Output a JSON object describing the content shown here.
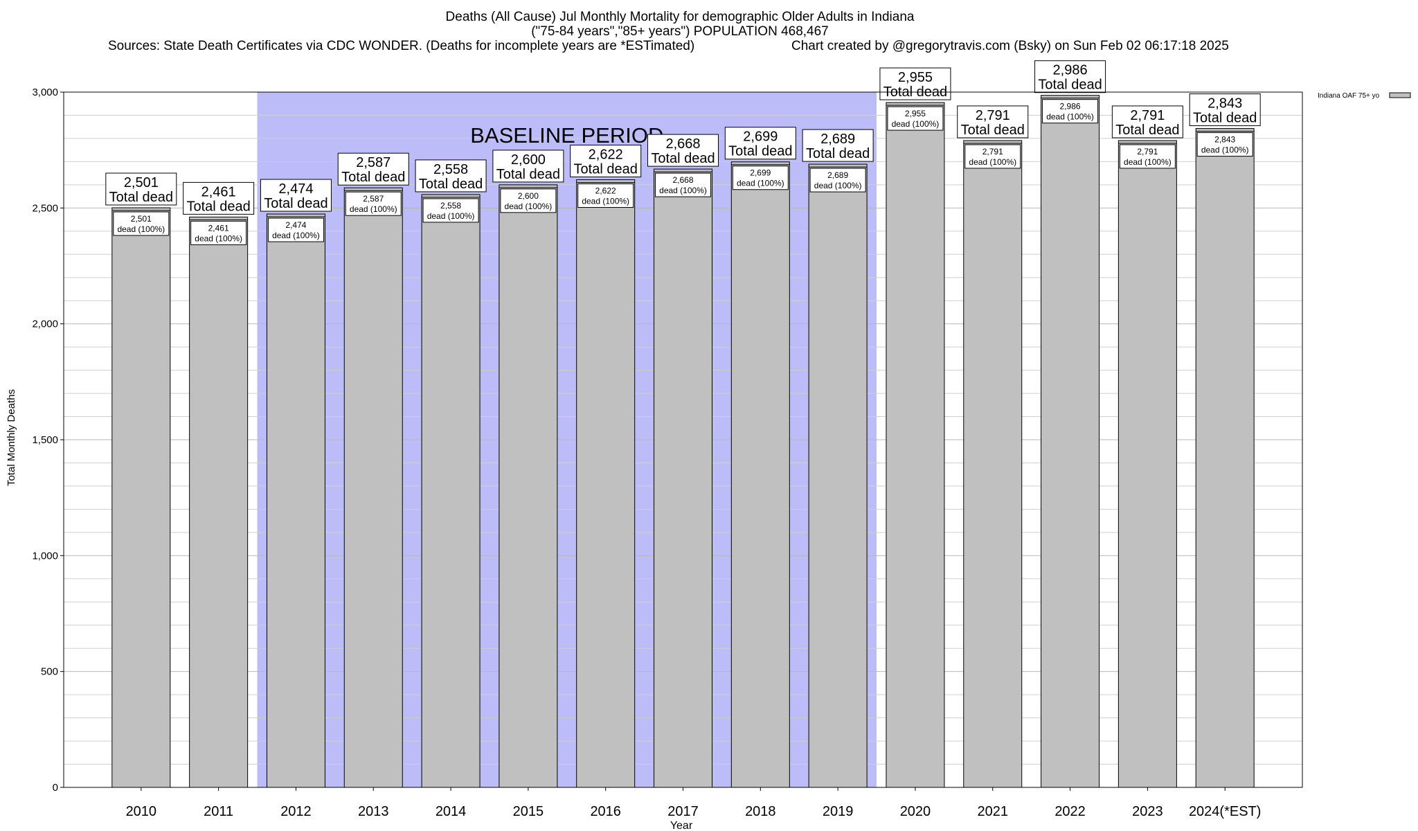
{
  "chart_data": {
    "type": "bar",
    "title": "Deaths (All Cause) Jul Monthly Mortality for demographic Older Adults in Indiana",
    "subtitle": "(\"75-84 years\",\"85+ years\") POPULATION 468,467",
    "sources": "Sources: State Death Certificates via CDC WONDER. (Deaths for incomplete years are *ESTimated)",
    "credit": "Chart created by @gregorytravis.com (Bsky) on Sun Feb 02 06:17:18 2025",
    "xlabel": "Year",
    "ylabel": "Total Monthly Deaths",
    "ylim": [
      0,
      3000
    ],
    "y_ticks": [
      0,
      500,
      1000,
      1500,
      2000,
      2500,
      3000
    ],
    "y_tick_labels": [
      "0",
      "500",
      "1,000",
      "1,500",
      "2,000",
      "2,500",
      "3,000"
    ],
    "grid": true,
    "categories": [
      "2010",
      "2011",
      "2012",
      "2013",
      "2014",
      "2015",
      "2016",
      "2017",
      "2018",
      "2019",
      "2020",
      "2021",
      "2022",
      "2023",
      "2024(*EST)"
    ],
    "series": [
      {
        "name": "Indiana OAF 75+ yo",
        "color": "#c0c0c0",
        "values": [
          2501,
          2461,
          2474,
          2587,
          2558,
          2600,
          2622,
          2668,
          2699,
          2689,
          2955,
          2791,
          2986,
          2791,
          2843
        ]
      }
    ],
    "value_labels": [
      "2,501",
      "2,461",
      "2,474",
      "2,587",
      "2,558",
      "2,600",
      "2,622",
      "2,668",
      "2,699",
      "2,689",
      "2,955",
      "2,791",
      "2,986",
      "2,791",
      "2,843"
    ],
    "total_label": "Total dead",
    "inner_label": "dead (100%)",
    "baseline": {
      "label": "BASELINE PERIOD",
      "from": "2012",
      "to": "2019",
      "color": "#bcbcf8"
    },
    "legend": {
      "position": "top-right",
      "label": "Indiana OAF 75+ yo"
    }
  }
}
